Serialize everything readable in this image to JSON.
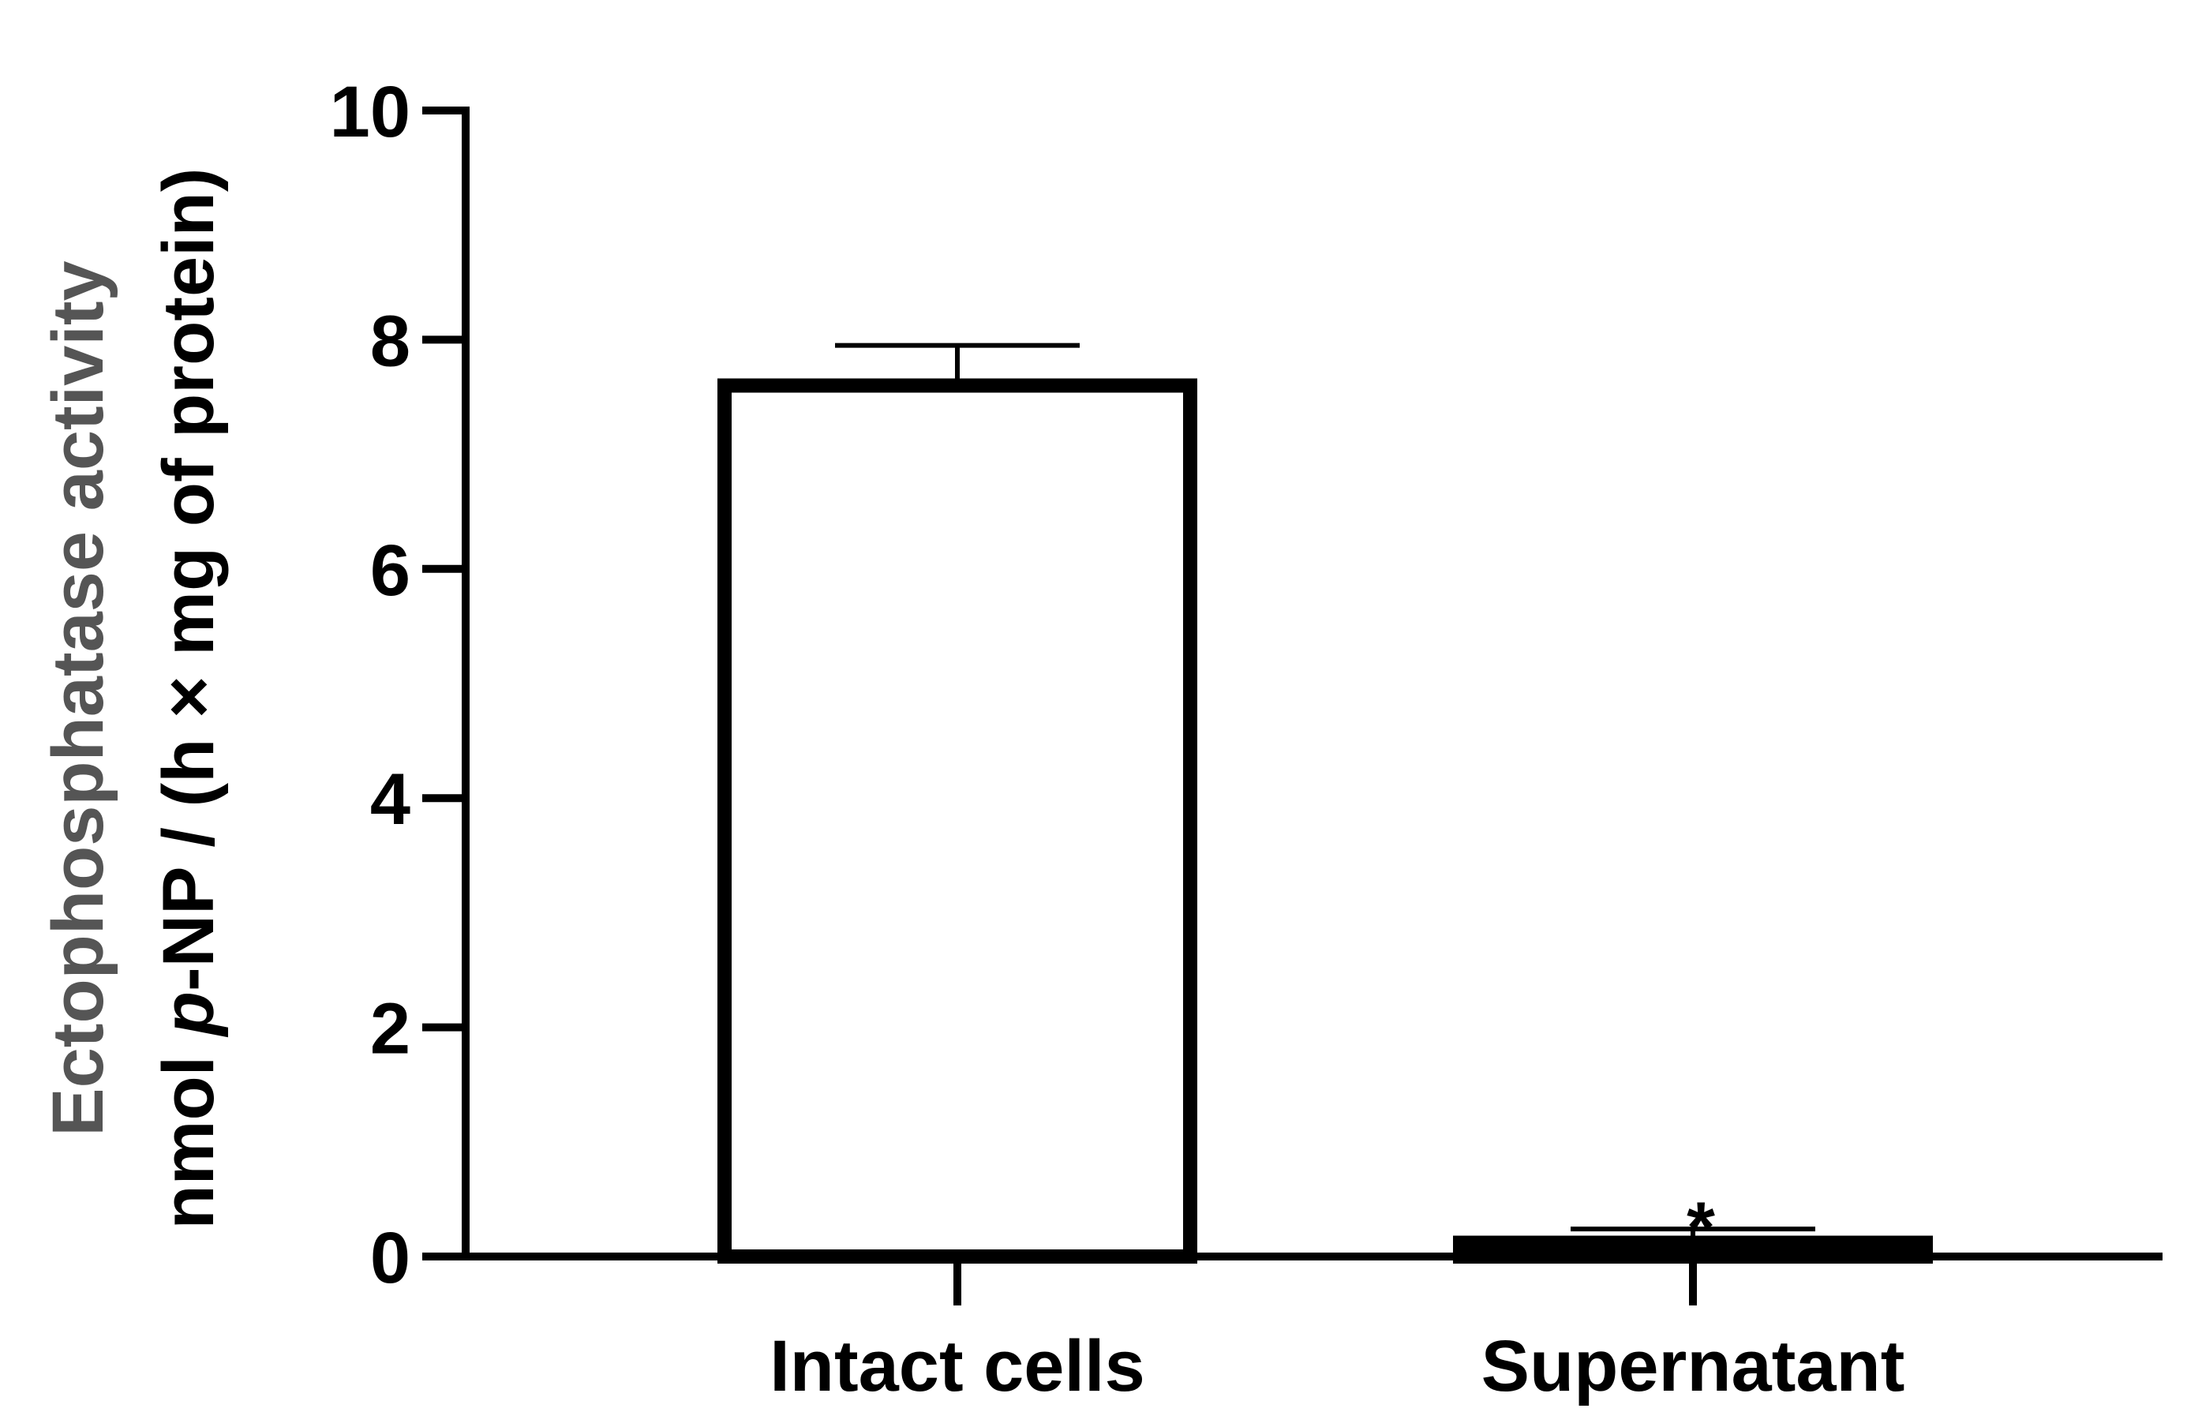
{
  "chart_data": {
    "type": "bar",
    "title": "",
    "ylabel_line1": "Ectophosphatase activity",
    "ylabel_line2_parts": [
      "nmol ",
      "p",
      "-NP / (h × mg of protein)"
    ],
    "xlabel": "",
    "categories": [
      "Intact cells",
      "Supernatant"
    ],
    "values": [
      7.6,
      0.12
    ],
    "errors": [
      0.35,
      0.12
    ],
    "bar_fills": [
      "#ffffff",
      "#000000"
    ],
    "annotations": [
      "",
      "*"
    ],
    "ylim": [
      0,
      10
    ],
    "yticks": [
      0,
      2,
      4,
      6,
      8,
      10
    ],
    "grid": false,
    "legend": "none"
  }
}
